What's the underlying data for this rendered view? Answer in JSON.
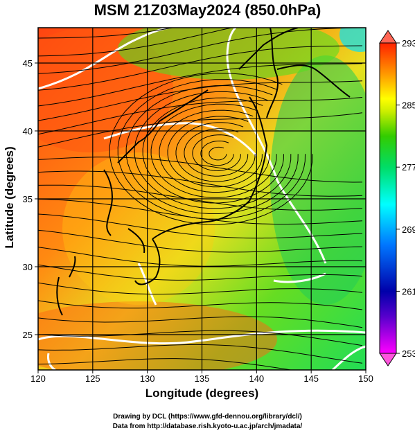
{
  "title": "MSM 21Z03May2024 (850.0hPa)",
  "xaxis": {
    "label": "Longitude (degrees)",
    "min": 120,
    "max": 150,
    "ticks": [
      120,
      125,
      130,
      135,
      140,
      145,
      150
    ]
  },
  "yaxis": {
    "label": "Latitude  (degrees)",
    "min": 22.4,
    "max": 47.6,
    "ticks": [
      25,
      30,
      35,
      40,
      45
    ]
  },
  "colorbar": {
    "min": 253,
    "max": 293,
    "ticks": [
      293,
      285,
      277,
      269,
      261,
      253
    ],
    "colors": [
      "#ff00ff",
      "#0000aa",
      "#0066ff",
      "#00ffff",
      "#00dd66",
      "#33cc00",
      "#ccee00",
      "#ffff00",
      "#ff9900",
      "#ff5500",
      "#ff2200"
    ]
  },
  "features": {
    "cyclone_center_lon": 136.5,
    "cyclone_center_lat": 38.3,
    "contour_color": "#ffffff",
    "streamline_color": "#000000"
  },
  "credits": {
    "line1": "Drawing by DCL (https://www.gfd-dennou.org/library/dcl/)",
    "line2": "Data from http://database.rish.kyoto-u.ac.jp/arch/jmadata/"
  }
}
